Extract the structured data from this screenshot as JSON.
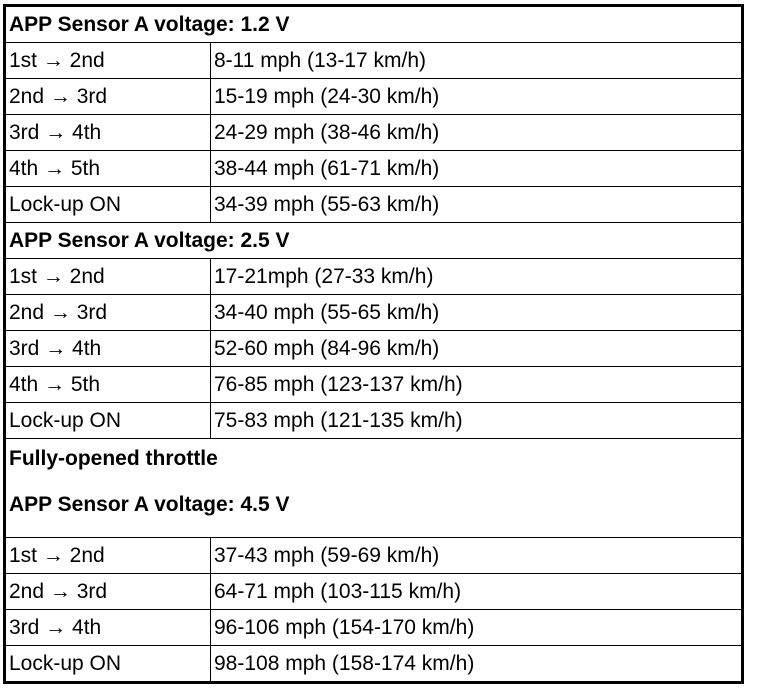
{
  "sections": [
    {
      "heading": "APP Sensor A voltage: 1.2 V",
      "rows": [
        {
          "shift": "1st → 2nd",
          "speed": "8-11 mph (13-17 km/h)"
        },
        {
          "shift": "2nd → 3rd",
          "speed": "15-19 mph (24-30 km/h)"
        },
        {
          "shift": "3rd → 4th",
          "speed": "24-29 mph (38-46 km/h)"
        },
        {
          "shift": "4th → 5th",
          "speed": "38-44 mph (61-71 km/h)"
        },
        {
          "shift": "Lock-up ON",
          "speed": "34-39 mph (55-63 km/h)"
        }
      ]
    },
    {
      "heading": "APP Sensor A voltage: 2.5 V",
      "rows": [
        {
          "shift": "1st → 2nd",
          "speed": "17-21mph (27-33 km/h)"
        },
        {
          "shift": "2nd → 3rd",
          "speed": "34-40 mph (55-65 km/h)"
        },
        {
          "shift": "3rd → 4th",
          "speed": "52-60 mph (84-96 km/h)"
        },
        {
          "shift": "4th → 5th",
          "speed": "76-85 mph (123-137 km/h)"
        },
        {
          "shift": "Lock-up ON",
          "speed": "75-83 mph (121-135 km/h)"
        }
      ]
    },
    {
      "subheading": "Fully-opened throttle",
      "heading": "APP Sensor A voltage: 4.5 V",
      "rows": [
        {
          "shift": "1st → 2nd",
          "speed": "37-43 mph (59-69 km/h)"
        },
        {
          "shift": "2nd → 3rd",
          "speed": "64-71 mph (103-115 km/h)"
        },
        {
          "shift": "3rd → 4th",
          "speed": "96-106 mph (154-170 km/h)"
        },
        {
          "shift": "Lock-up ON",
          "speed": "98-108 mph (158-174 km/h)"
        }
      ]
    }
  ]
}
